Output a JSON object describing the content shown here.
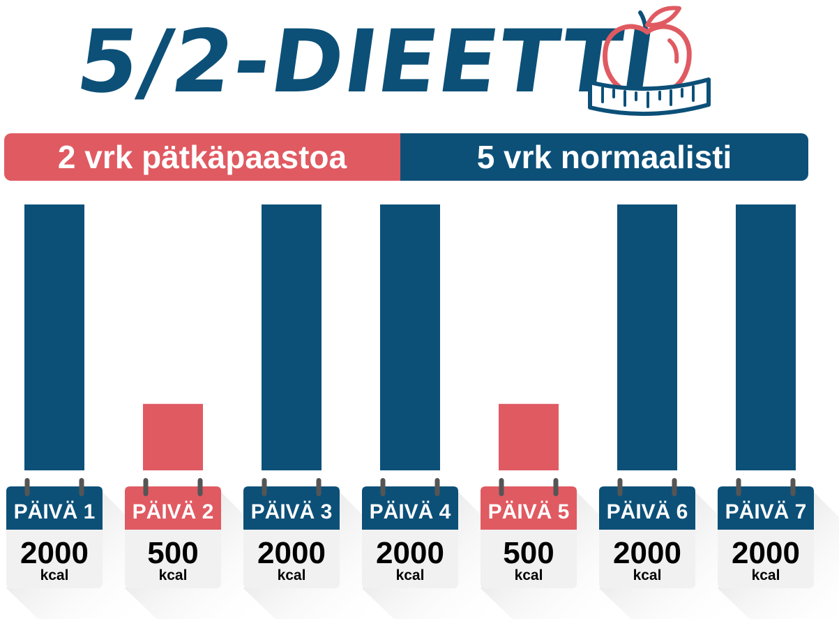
{
  "title": "5/2-DIEETTI",
  "banner": {
    "fast_label": "2 vrk pätkäpaastoa",
    "normal_label": "5 vrk normaalisti"
  },
  "icon": "apple-measuring-tape-icon",
  "colors": {
    "normal": "#0c5078",
    "fast": "#e05a62"
  },
  "chart_data": {
    "type": "bar",
    "categories": [
      "PÄIVÄ 1",
      "PÄIVÄ 2",
      "PÄIVÄ 3",
      "PÄIVÄ 4",
      "PÄIVÄ 5",
      "PÄIVÄ 6",
      "PÄIVÄ 7"
    ],
    "values": [
      2000,
      500,
      2000,
      2000,
      500,
      2000,
      2000
    ],
    "value_labels": [
      "2000",
      "500",
      "2000",
      "2000",
      "500",
      "2000",
      "2000"
    ],
    "unit": "kcal",
    "kinds": [
      "normal",
      "fast",
      "normal",
      "normal",
      "fast",
      "normal",
      "normal"
    ],
    "ylim": [
      0,
      2000
    ],
    "grid": false
  }
}
